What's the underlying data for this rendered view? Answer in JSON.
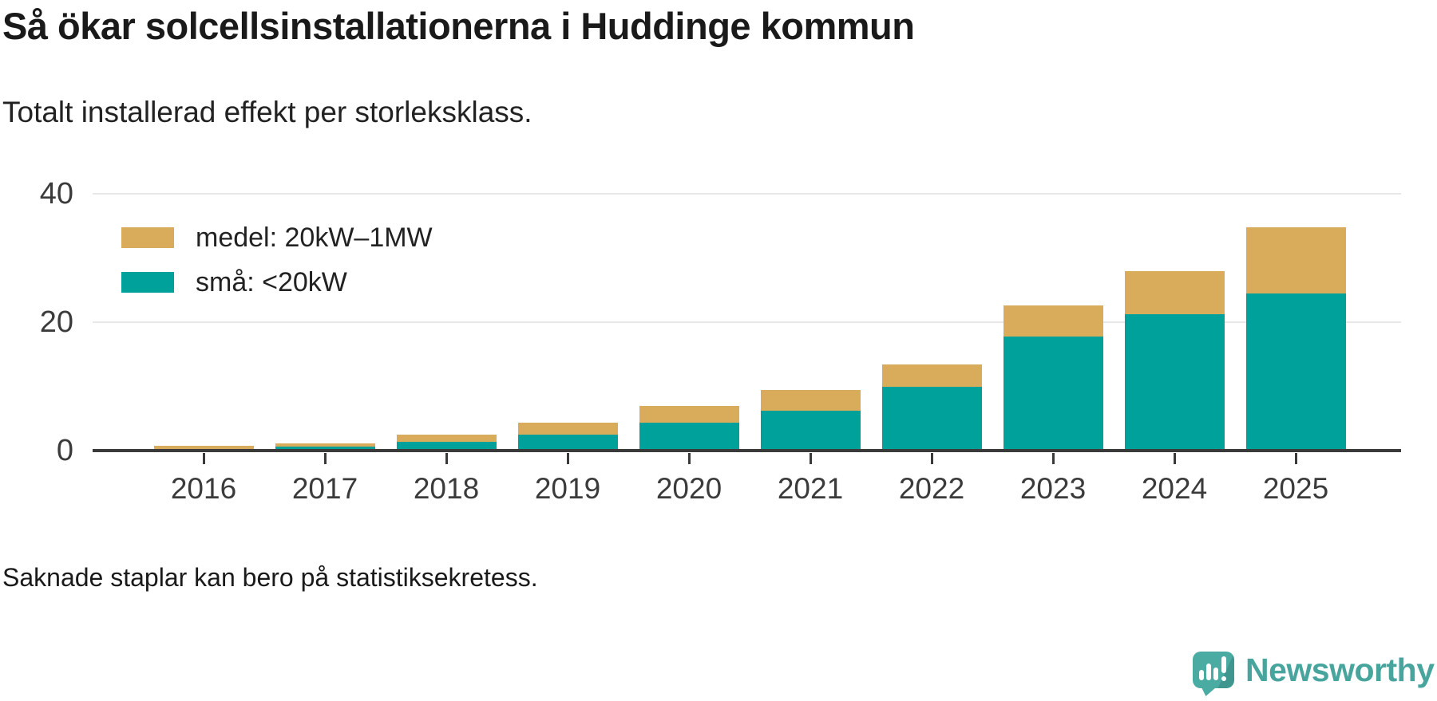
{
  "header": {
    "title": "Så ökar solcellsinstallationerna i Huddinge kommun",
    "subtitle": "Totalt installerad effekt per storleksklass."
  },
  "footer": {
    "note": "Saknade staplar kan bero på statistiksekretess.",
    "brand": "Newsworthy"
  },
  "colors": {
    "medel": "#d9ac5c",
    "sma": "#00a19a",
    "axis": "#3a3a3a",
    "grid": "#e8e8e8",
    "brand_icon": "#4aaba3",
    "brand_text": "#47a59e"
  },
  "chart_data": {
    "type": "bar",
    "stacked": true,
    "title": "Så ökar solcellsinstallationerna i Huddinge kommun",
    "subtitle": "Totalt installerad effekt per storleksklass.",
    "categories": [
      "2016",
      "2017",
      "2018",
      "2019",
      "2020",
      "2021",
      "2022",
      "2023",
      "2024",
      "2025"
    ],
    "series": [
      {
        "name": "medel: 20kW–1MW",
        "color": "#d9ac5c",
        "values": [
          0.45,
          0.55,
          1.1,
          1.9,
          2.6,
          3.2,
          3.5,
          4.8,
          6.6,
          10.3
        ]
      },
      {
        "name": "små: <20kW",
        "color": "#00a19a",
        "values": [
          0.3,
          0.6,
          1.4,
          2.5,
          4.3,
          6.2,
          9.9,
          17.8,
          21.3,
          24.5
        ]
      }
    ],
    "xlabel": "",
    "ylabel": "",
    "ylim": [
      0,
      40
    ],
    "yticks": [
      0,
      20,
      40
    ],
    "grid": "horizontal",
    "legend_position": "top-left-inside"
  }
}
